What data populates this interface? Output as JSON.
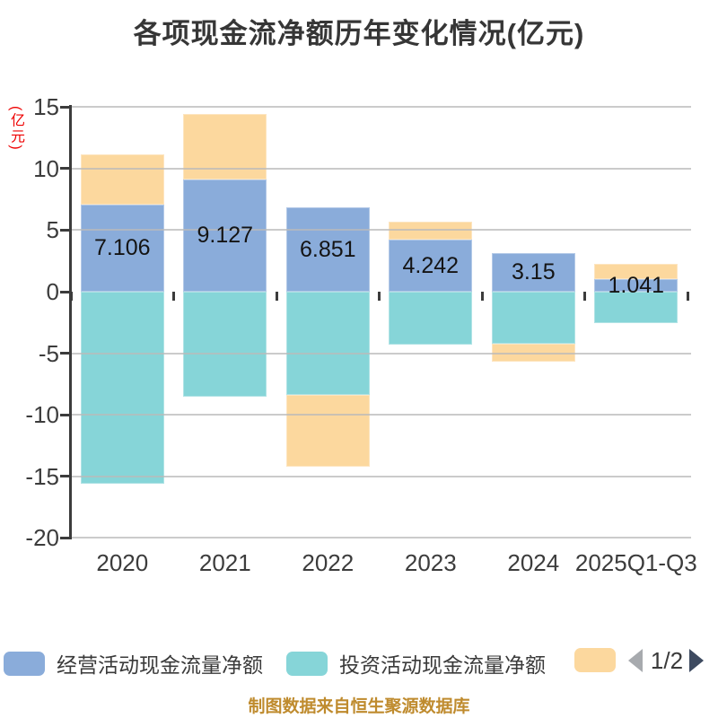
{
  "title": "各项现金流净额历年变化情况(亿元)",
  "y_axis_unit": "(亿元)",
  "footer": "制图数据来自恒生聚源数据库",
  "pagination": {
    "current": "1/2"
  },
  "legend": [
    {
      "label": "经营活动现金流量净额",
      "color": "#8aacda"
    },
    {
      "label": "投资活动现金流量净额",
      "color": "#86d5d8"
    },
    {
      "label": "",
      "color": "#fcd89e"
    }
  ],
  "colors": {
    "axis": "#3c3c3c",
    "grid": "#bababa",
    "title": "#363636",
    "y_unit_red": "#ee0000",
    "footer_gold": "#bf8b2e",
    "pager_prev_gray": "#a7aaae",
    "pager_next_navy": "#3d4a60"
  },
  "chart_data": {
    "type": "bar",
    "stacked": true,
    "title": "各项现金流净额历年变化情况(亿元)",
    "ylabel": "(亿元)",
    "ylim": [
      -20,
      15
    ],
    "y_ticks": [
      15,
      10,
      5,
      0,
      -5,
      -10,
      -15,
      -20
    ],
    "grid": true,
    "legend_position": "bottom",
    "categories": [
      "2020",
      "2021",
      "2022",
      "2023",
      "2024",
      "2025Q1-Q3"
    ],
    "series": [
      {
        "name": "经营活动现金流量净额",
        "color": "#8aacda",
        "values": [
          7.106,
          9.127,
          6.851,
          4.242,
          3.15,
          1.041
        ],
        "data_labels": [
          "7.106",
          "9.127",
          "6.851",
          "4.242",
          "3.15",
          "1.041"
        ]
      },
      {
        "name": "投资活动现金流量净额",
        "color": "#86d5d8",
        "values": [
          -15.6,
          -8.5,
          -8.35,
          -4.33,
          -4.26,
          -2.55
        ]
      },
      {
        "name": "",
        "color": "#fcd89e",
        "values": [
          4.05,
          5.31,
          -5.84,
          1.45,
          -1.46,
          1.22
        ]
      }
    ]
  }
}
